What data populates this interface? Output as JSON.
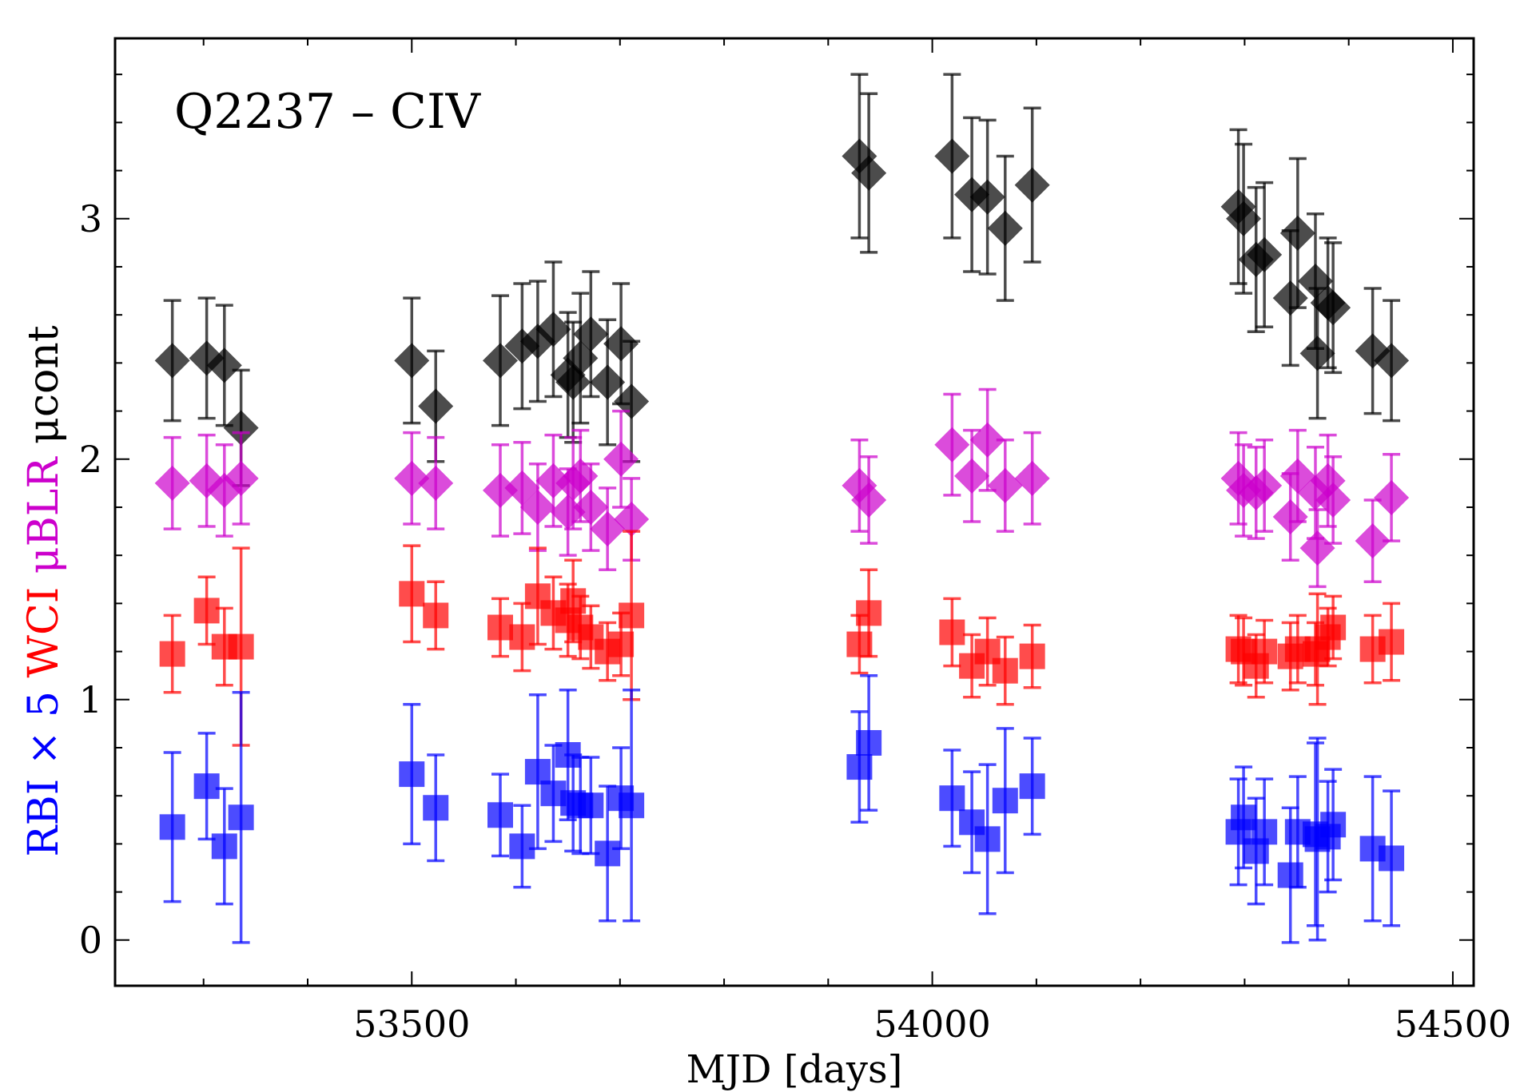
{
  "chart_data": {
    "type": "scatter",
    "title": "Q2237 – CIV",
    "xlabel": "MJD [days]",
    "ylabel_parts": [
      {
        "text": "RBI × 5 ",
        "color": "#0000ff"
      },
      {
        "text": "WCI ",
        "color": "#ff0000"
      },
      {
        "text": "μBLR ",
        "color": "#cc00cc"
      },
      {
        "text": "μcont",
        "color": "#000000"
      }
    ],
    "xlim": [
      53215,
      54520
    ],
    "ylim": [
      -0.19,
      3.75
    ],
    "x_ticks": [
      53500,
      54000,
      54500
    ],
    "y_ticks": [
      0,
      1,
      2,
      3
    ],
    "grid": false,
    "series": [
      {
        "marker": "diamond",
        "color": "#000000",
        "points": [
          [
            53270,
            2.41,
            0.25
          ],
          [
            53303,
            2.42,
            0.25
          ],
          [
            53320,
            2.39,
            0.25
          ],
          [
            53336,
            2.13,
            0.24
          ],
          [
            53500,
            2.41,
            0.26
          ],
          [
            53523,
            2.22,
            0.23
          ],
          [
            53585,
            2.41,
            0.27
          ],
          [
            53606,
            2.47,
            0.26
          ],
          [
            53621,
            2.49,
            0.25
          ],
          [
            53636,
            2.54,
            0.28
          ],
          [
            53650,
            2.35,
            0.26
          ],
          [
            53655,
            2.32,
            0.25
          ],
          [
            53662,
            2.42,
            0.27
          ],
          [
            53672,
            2.52,
            0.26
          ],
          [
            53688,
            2.32,
            0.26
          ],
          [
            53701,
            2.48,
            0.25
          ],
          [
            53711,
            2.24,
            0.25
          ],
          [
            53930,
            3.26,
            0.34
          ],
          [
            53939,
            3.19,
            0.33
          ],
          [
            54019,
            3.26,
            0.34
          ],
          [
            54038,
            3.1,
            0.32
          ],
          [
            54053,
            3.09,
            0.32
          ],
          [
            54070,
            2.96,
            0.3
          ],
          [
            54096,
            3.14,
            0.32
          ],
          [
            54294,
            3.05,
            0.32
          ],
          [
            54299,
            3.0,
            0.31
          ],
          [
            54311,
            2.83,
            0.3
          ],
          [
            54319,
            2.85,
            0.3
          ],
          [
            54344,
            2.67,
            0.28
          ],
          [
            54351,
            2.94,
            0.31
          ],
          [
            54368,
            2.74,
            0.28
          ],
          [
            54370,
            2.44,
            0.27
          ],
          [
            54380,
            2.65,
            0.27
          ],
          [
            54385,
            2.63,
            0.27
          ],
          [
            54423,
            2.45,
            0.26
          ],
          [
            54441,
            2.41,
            0.25
          ]
        ]
      },
      {
        "marker": "diamond",
        "color": "#cc00cc",
        "points": [
          [
            53270,
            1.9,
            0.19
          ],
          [
            53303,
            1.91,
            0.19
          ],
          [
            53320,
            1.87,
            0.19
          ],
          [
            53336,
            1.92,
            0.19
          ],
          [
            53500,
            1.92,
            0.19
          ],
          [
            53523,
            1.9,
            0.19
          ],
          [
            53585,
            1.87,
            0.19
          ],
          [
            53606,
            1.88,
            0.19
          ],
          [
            53621,
            1.8,
            0.18
          ],
          [
            53636,
            1.91,
            0.19
          ],
          [
            53650,
            1.78,
            0.18
          ],
          [
            53655,
            1.9,
            0.19
          ],
          [
            53662,
            1.93,
            0.19
          ],
          [
            53672,
            1.8,
            0.18
          ],
          [
            53688,
            1.71,
            0.17
          ],
          [
            53701,
            2.0,
            0.2
          ],
          [
            53711,
            1.75,
            0.17
          ],
          [
            53930,
            1.89,
            0.19
          ],
          [
            53939,
            1.83,
            0.18
          ],
          [
            54019,
            2.06,
            0.21
          ],
          [
            54038,
            1.93,
            0.19
          ],
          [
            54053,
            2.08,
            0.21
          ],
          [
            54070,
            1.89,
            0.19
          ],
          [
            54096,
            1.92,
            0.19
          ],
          [
            54294,
            1.92,
            0.19
          ],
          [
            54299,
            1.87,
            0.19
          ],
          [
            54311,
            1.86,
            0.19
          ],
          [
            54319,
            1.89,
            0.19
          ],
          [
            54344,
            1.76,
            0.18
          ],
          [
            54351,
            1.93,
            0.19
          ],
          [
            54368,
            1.86,
            0.19
          ],
          [
            54370,
            1.63,
            0.16
          ],
          [
            54380,
            1.91,
            0.19
          ],
          [
            54385,
            1.83,
            0.18
          ],
          [
            54423,
            1.66,
            0.17
          ],
          [
            54441,
            1.84,
            0.18
          ]
        ]
      },
      {
        "marker": "square",
        "color": "#ff0000",
        "points": [
          [
            53270,
            1.19,
            0.16
          ],
          [
            53303,
            1.37,
            0.14
          ],
          [
            53320,
            1.22,
            0.16
          ],
          [
            53336,
            1.22,
            0.41
          ],
          [
            53500,
            1.44,
            0.2
          ],
          [
            53523,
            1.35,
            0.14
          ],
          [
            53585,
            1.3,
            0.12
          ],
          [
            53606,
            1.26,
            0.14
          ],
          [
            53621,
            1.43,
            0.2
          ],
          [
            53636,
            1.36,
            0.15
          ],
          [
            53650,
            1.33,
            0.15
          ],
          [
            53655,
            1.41,
            0.17
          ],
          [
            53662,
            1.3,
            0.13
          ],
          [
            53672,
            1.26,
            0.13
          ],
          [
            53688,
            1.2,
            0.12
          ],
          [
            53701,
            1.23,
            0.13
          ],
          [
            53711,
            1.35,
            0.35
          ],
          [
            53930,
            1.23,
            0.12
          ],
          [
            53939,
            1.36,
            0.18
          ],
          [
            54019,
            1.28,
            0.14
          ],
          [
            54038,
            1.14,
            0.13
          ],
          [
            54053,
            1.2,
            0.14
          ],
          [
            54070,
            1.12,
            0.14
          ],
          [
            54096,
            1.18,
            0.13
          ],
          [
            54294,
            1.21,
            0.14
          ],
          [
            54299,
            1.2,
            0.14
          ],
          [
            54311,
            1.14,
            0.13
          ],
          [
            54319,
            1.2,
            0.13
          ],
          [
            54344,
            1.18,
            0.14
          ],
          [
            54351,
            1.21,
            0.14
          ],
          [
            54368,
            1.19,
            0.13
          ],
          [
            54370,
            1.21,
            0.23
          ],
          [
            54380,
            1.26,
            0.12
          ],
          [
            54385,
            1.3,
            0.13
          ],
          [
            54423,
            1.21,
            0.14
          ],
          [
            54441,
            1.24,
            0.16
          ]
        ]
      },
      {
        "marker": "square",
        "color": "#0000ff",
        "points": [
          [
            53270,
            0.47,
            0.31
          ],
          [
            53303,
            0.64,
            0.22
          ],
          [
            53320,
            0.39,
            0.24
          ],
          [
            53336,
            0.51,
            0.52
          ],
          [
            53500,
            0.69,
            0.29
          ],
          [
            53523,
            0.55,
            0.22
          ],
          [
            53585,
            0.52,
            0.17
          ],
          [
            53606,
            0.39,
            0.17
          ],
          [
            53621,
            0.7,
            0.32
          ],
          [
            53636,
            0.61,
            0.2
          ],
          [
            53650,
            0.77,
            0.27
          ],
          [
            53655,
            0.57,
            0.2
          ],
          [
            53662,
            0.56,
            0.2
          ],
          [
            53672,
            0.56,
            0.2
          ],
          [
            53688,
            0.36,
            0.28
          ],
          [
            53701,
            0.59,
            0.21
          ],
          [
            53711,
            0.56,
            0.48
          ],
          [
            53930,
            0.72,
            0.23
          ],
          [
            53939,
            0.82,
            0.28
          ],
          [
            54019,
            0.59,
            0.2
          ],
          [
            54038,
            0.49,
            0.21
          ],
          [
            54053,
            0.42,
            0.31
          ],
          [
            54070,
            0.58,
            0.3
          ],
          [
            54096,
            0.64,
            0.2
          ],
          [
            54294,
            0.45,
            0.22
          ],
          [
            54299,
            0.51,
            0.21
          ],
          [
            54311,
            0.37,
            0.22
          ],
          [
            54319,
            0.45,
            0.22
          ],
          [
            54344,
            0.27,
            0.28
          ],
          [
            54351,
            0.45,
            0.23
          ],
          [
            54368,
            0.44,
            0.38
          ],
          [
            54370,
            0.42,
            0.42
          ],
          [
            54380,
            0.43,
            0.23
          ],
          [
            54385,
            0.48,
            0.23
          ],
          [
            54423,
            0.38,
            0.3
          ],
          [
            54441,
            0.34,
            0.28
          ]
        ]
      }
    ]
  }
}
